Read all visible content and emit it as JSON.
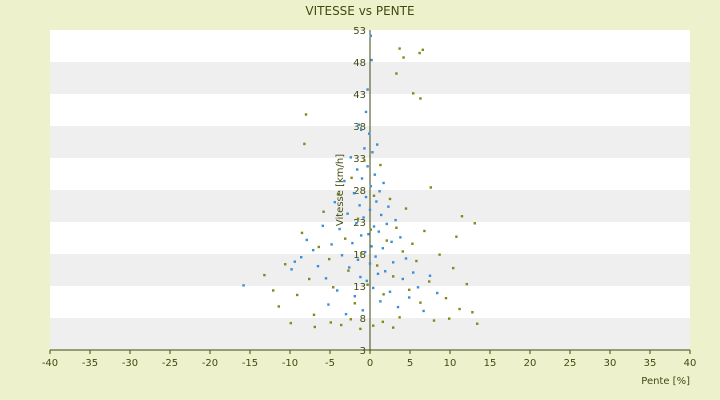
{
  "chart_data": {
    "type": "scatter",
    "title": "VITESSE vs PENTE",
    "xlabel": "Pente [%]",
    "ylabel": "Vitesse [km/h]",
    "xlim": [
      -40,
      40
    ],
    "ylim": [
      3,
      53
    ],
    "x_ticks": [
      -40,
      -35,
      -30,
      -25,
      -20,
      -15,
      -10,
      -5,
      0,
      5,
      10,
      15,
      20,
      25,
      30,
      35,
      40
    ],
    "y_tick_labels": [
      "53",
      "48",
      "43",
      "38",
      "33",
      "28",
      "23",
      "18",
      "13",
      "8",
      "3"
    ],
    "y_tick_values": [
      53,
      48,
      43,
      38,
      33,
      28,
      23,
      18,
      13,
      8,
      3
    ],
    "colors": {
      "page_background": "#eef2cc",
      "plot_band_light": "#ffffff",
      "plot_band_dark": "#efefef",
      "axis": "#3f4a10",
      "text": "#3f4a10"
    },
    "series": [
      {
        "marker_color": "#3a8fd6",
        "points": [
          [
            -15.8,
            13.1
          ],
          [
            -9.8,
            15.6
          ],
          [
            -9.4,
            16.8
          ],
          [
            -8.6,
            17.5
          ],
          [
            -7.9,
            20.2
          ],
          [
            -7.1,
            18.6
          ],
          [
            -6.5,
            16.1
          ],
          [
            -5.9,
            22.4
          ],
          [
            -5.5,
            14.2
          ],
          [
            -5.2,
            10.1
          ],
          [
            -4.8,
            19.5
          ],
          [
            -4.4,
            26.1
          ],
          [
            -4.1,
            12.3
          ],
          [
            -3.8,
            21.9
          ],
          [
            -3.5,
            17.8
          ],
          [
            -3.2,
            29.4
          ],
          [
            -3.0,
            8.6
          ],
          [
            -2.8,
            24.3
          ],
          [
            -2.6,
            15.9
          ],
          [
            -2.4,
            33.1
          ],
          [
            -2.2,
            19.7
          ],
          [
            -2.0,
            27.5
          ],
          [
            -1.9,
            11.4
          ],
          [
            -1.7,
            22.8
          ],
          [
            -1.6,
            31.2
          ],
          [
            -1.5,
            17.1
          ],
          [
            -1.4,
            38.2
          ],
          [
            -1.3,
            25.6
          ],
          [
            -1.2,
            14.4
          ],
          [
            -1.1,
            20.9
          ],
          [
            -1.0,
            29.8
          ],
          [
            -0.9,
            9.2
          ],
          [
            -0.8,
            23.7
          ],
          [
            -0.7,
            34.5
          ],
          [
            -0.6,
            18.3
          ],
          [
            -0.5,
            26.9
          ],
          [
            -0.4,
            13.8
          ],
          [
            -0.3,
            31.7
          ],
          [
            -0.2,
            21.1
          ],
          [
            -0.1,
            36.8
          ],
          [
            0.0,
            16.5
          ],
          [
            0.0,
            24.9
          ],
          [
            0.1,
            28.6
          ],
          [
            0.2,
            19.2
          ],
          [
            0.3,
            33.9
          ],
          [
            0.4,
            12.7
          ],
          [
            0.5,
            22.3
          ],
          [
            0.6,
            30.4
          ],
          [
            0.7,
            17.6
          ],
          [
            0.8,
            26.2
          ],
          [
            0.9,
            35.1
          ],
          [
            1.0,
            14.9
          ],
          [
            1.1,
            21.5
          ],
          [
            1.2,
            27.8
          ],
          [
            1.3,
            10.6
          ],
          [
            1.4,
            24.1
          ],
          [
            1.6,
            18.9
          ],
          [
            1.7,
            29.1
          ],
          [
            1.9,
            15.3
          ],
          [
            2.1,
            22.7
          ],
          [
            2.3,
            25.4
          ],
          [
            2.5,
            12.1
          ],
          [
            2.7,
            19.9
          ],
          [
            2.9,
            16.7
          ],
          [
            3.2,
            23.3
          ],
          [
            3.5,
            9.7
          ],
          [
            3.8,
            20.6
          ],
          [
            4.1,
            14.1
          ],
          [
            4.5,
            17.3
          ],
          [
            4.9,
            11.2
          ],
          [
            5.4,
            15.1
          ],
          [
            6.0,
            12.8
          ],
          [
            6.7,
            9.1
          ],
          [
            7.5,
            14.6
          ],
          [
            8.4,
            11.9
          ],
          [
            -0.3,
            43.7
          ],
          [
            0.2,
            48.3
          ],
          [
            -0.5,
            40.2
          ],
          [
            0.1,
            52.1
          ],
          [
            -1.1,
            37.4
          ]
        ]
      },
      {
        "marker_color": "#7f8a18",
        "points": [
          [
            -13.2,
            14.7
          ],
          [
            -12.1,
            12.3
          ],
          [
            -11.4,
            9.8
          ],
          [
            -10.6,
            16.4
          ],
          [
            -9.9,
            7.2
          ],
          [
            -9.1,
            11.6
          ],
          [
            -8.5,
            21.3
          ],
          [
            -8.2,
            35.2
          ],
          [
            -8.0,
            39.8
          ],
          [
            -7.6,
            14.1
          ],
          [
            -7.0,
            8.5
          ],
          [
            -6.4,
            19.1
          ],
          [
            -5.8,
            24.6
          ],
          [
            -5.1,
            17.2
          ],
          [
            -4.6,
            12.8
          ],
          [
            -4.0,
            27.3
          ],
          [
            -3.6,
            6.9
          ],
          [
            -3.1,
            20.4
          ],
          [
            -2.7,
            15.4
          ],
          [
            -2.3,
            29.9
          ],
          [
            -1.9,
            10.3
          ],
          [
            -1.5,
            23.5
          ],
          [
            -1.1,
            18.1
          ],
          [
            -0.7,
            32.6
          ],
          [
            -0.3,
            13.2
          ],
          [
            0.1,
            21.8
          ],
          [
            0.5,
            27.1
          ],
          [
            0.9,
            16.2
          ],
          [
            1.3,
            31.9
          ],
          [
            1.7,
            11.7
          ],
          [
            2.1,
            20.1
          ],
          [
            2.5,
            26.6
          ],
          [
            2.9,
            14.5
          ],
          [
            3.3,
            22.1
          ],
          [
            3.7,
            8.1
          ],
          [
            4.1,
            18.4
          ],
          [
            4.5,
            25.1
          ],
          [
            4.9,
            12.4
          ],
          [
            5.3,
            19.6
          ],
          [
            5.8,
            16.9
          ],
          [
            6.3,
            10.4
          ],
          [
            6.8,
            21.6
          ],
          [
            7.4,
            13.7
          ],
          [
            8.0,
            7.6
          ],
          [
            8.7,
            17.9
          ],
          [
            9.5,
            11.1
          ],
          [
            10.4,
            15.8
          ],
          [
            11.2,
            9.4
          ],
          [
            12.1,
            13.3
          ],
          [
            13.4,
            7.1
          ],
          [
            13.1,
            22.8
          ],
          [
            10.8,
            20.7
          ],
          [
            11.5,
            23.9
          ],
          [
            7.6,
            28.4
          ],
          [
            6.3,
            42.3
          ],
          [
            5.4,
            43.1
          ],
          [
            6.2,
            49.4
          ],
          [
            3.7,
            50.1
          ],
          [
            6.6,
            49.9
          ],
          [
            4.2,
            48.7
          ],
          [
            -1.2,
            6.3
          ],
          [
            0.4,
            6.8
          ],
          [
            1.6,
            7.4
          ],
          [
            2.9,
            6.5
          ],
          [
            -2.4,
            7.8
          ],
          [
            9.9,
            7.9
          ],
          [
            -6.9,
            6.6
          ],
          [
            -4.9,
            7.3
          ],
          [
            12.8,
            8.9
          ],
          [
            3.3,
            46.2
          ]
        ]
      }
    ]
  }
}
